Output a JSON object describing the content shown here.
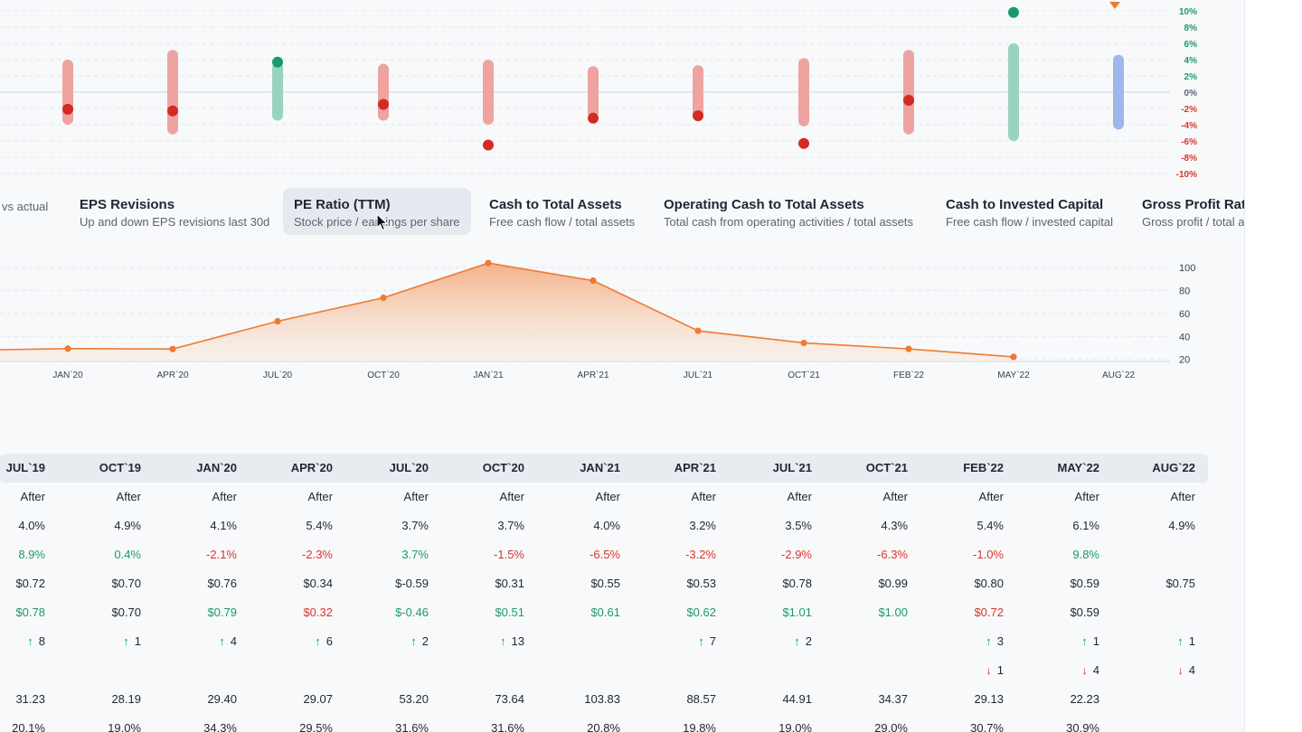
{
  "colors": {
    "positive": "#1e9a66",
    "negative": "#d9362b",
    "accent": "#ee7a32",
    "neutral_bar": "#9db8ec"
  },
  "revisions_chart": {
    "y_ticks": [
      "10%",
      "8%",
      "6%",
      "4%",
      "2%",
      "0%",
      "-2%",
      "-4%",
      "-6%",
      "-8%",
      "-10%"
    ],
    "ylim": [
      -10,
      10
    ],
    "items": [
      {
        "range": [
          -4,
          4
        ],
        "dot": -2.1,
        "tone": "negative"
      },
      {
        "range": [
          -5.2,
          5.2
        ],
        "dot": -2.3,
        "tone": "negative"
      },
      {
        "range": [
          -3.5,
          3.7
        ],
        "dot": 3.7,
        "tone": "positive"
      },
      {
        "range": [
          -3.5,
          3.5
        ],
        "dot": -1.5,
        "tone": "negative"
      },
      {
        "range": [
          -4,
          4
        ],
        "dot": -6.5,
        "tone": "negative"
      },
      {
        "range": [
          -3.2,
          3.2
        ],
        "dot": -3.2,
        "tone": "negative"
      },
      {
        "range": [
          -3.3,
          3.3
        ],
        "dot": -2.9,
        "tone": "negative"
      },
      {
        "range": [
          -4.2,
          4.2
        ],
        "dot": -6.3,
        "tone": "negative"
      },
      {
        "range": [
          -5.2,
          5.2
        ],
        "dot": -1.0,
        "tone": "negative"
      },
      {
        "range": [
          -6,
          6
        ],
        "dot": 9.8,
        "tone": "positive"
      },
      {
        "range": [
          -4.6,
          4.6
        ],
        "dot": null,
        "tone": "neutral"
      }
    ]
  },
  "metrics": [
    {
      "title": "",
      "subtitle": "vs actual"
    },
    {
      "title": "EPS Revisions",
      "subtitle": "Up and down EPS revisions last 30d"
    },
    {
      "title": "PE Ratio (TTM)",
      "subtitle": "Stock price / earnings per share",
      "active": true
    },
    {
      "title": "Cash to Total Assets",
      "subtitle": "Free cash flow / total assets"
    },
    {
      "title": "Operating Cash to Total Assets",
      "subtitle": "Total cash from operating activities / total assets"
    },
    {
      "title": "Cash to Invested Capital",
      "subtitle": "Free cash flow / invested capital"
    },
    {
      "title": "Gross Profit Ratio",
      "subtitle": "Gross profit / total assets"
    }
  ],
  "chart_data": {
    "type": "area",
    "title": "PE Ratio (TTM)",
    "x": [
      "OCT`19",
      "JAN`20",
      "APR`20",
      "JUL`20",
      "OCT`20",
      "JAN`21",
      "APR`21",
      "JUL`21",
      "OCT`21",
      "FEB`22",
      "MAY`22"
    ],
    "x_tick_labels": [
      "JAN`20",
      "APR`20",
      "JUL`20",
      "OCT`20",
      "JAN`21",
      "APR`21",
      "JUL`21",
      "OCT`21",
      "FEB`22",
      "MAY`22",
      "AUG`22"
    ],
    "series": [
      {
        "name": "",
        "values": [
          28.19,
          29.4,
          29.07,
          53.2,
          73.64,
          103.83,
          88.57,
          44.91,
          34.37,
          29.13,
          22.23
        ]
      }
    ],
    "y_ticks": [
      100,
      80,
      60,
      40,
      20
    ],
    "ylim": [
      19,
      111
    ],
    "grid": true
  },
  "table": {
    "columns": [
      "JUL`19",
      "OCT`19",
      "JAN`20",
      "APR`20",
      "JUL`20",
      "OCT`20",
      "JAN`21",
      "APR`21",
      "JUL`21",
      "OCT`21",
      "FEB`22",
      "MAY`22",
      "AUG`22"
    ],
    "rows": [
      {
        "type": "text",
        "cells": [
          "After",
          "After",
          "After",
          "After",
          "After",
          "After",
          "After",
          "After",
          "After",
          "After",
          "After",
          "After",
          "After"
        ]
      },
      {
        "type": "text",
        "cells": [
          "4.0%",
          "4.9%",
          "4.1%",
          "5.4%",
          "3.7%",
          "3.7%",
          "4.0%",
          "3.2%",
          "3.5%",
          "4.3%",
          "5.4%",
          "6.1%",
          "4.9%"
        ]
      },
      {
        "type": "text",
        "cells": [
          "8.9%",
          "0.4%",
          "-2.1%",
          "-2.3%",
          "3.7%",
          "-1.5%",
          "-6.5%",
          "-3.2%",
          "-2.9%",
          "-6.3%",
          "-1.0%",
          "9.8%",
          ""
        ],
        "tones": [
          "pos",
          "pos",
          "neg",
          "neg",
          "pos",
          "neg",
          "neg",
          "neg",
          "neg",
          "neg",
          "neg",
          "pos",
          ""
        ]
      },
      {
        "type": "text",
        "cells": [
          "$0.72",
          "$0.70",
          "$0.76",
          "$0.34",
          "$-0.59",
          "$0.31",
          "$0.55",
          "$0.53",
          "$0.78",
          "$0.99",
          "$0.80",
          "$0.59",
          "$0.75"
        ]
      },
      {
        "type": "text",
        "cells": [
          "$0.78",
          "$0.70",
          "$0.79",
          "$0.32",
          "$-0.46",
          "$0.51",
          "$0.61",
          "$0.62",
          "$1.01",
          "$1.00",
          "$0.72",
          "$0.59",
          ""
        ],
        "tones": [
          "pos",
          "",
          "pos",
          "neg",
          "pos",
          "pos",
          "pos",
          "pos",
          "pos",
          "pos",
          "neg",
          "",
          ""
        ]
      },
      {
        "type": "up",
        "cells": [
          "8",
          "1",
          "4",
          "6",
          "2",
          "13",
          "",
          "7",
          "2",
          "",
          "3",
          "1",
          "1"
        ]
      },
      {
        "type": "down",
        "cells": [
          "",
          "",
          "",
          "",
          "",
          "",
          "",
          "",
          "",
          "",
          "1",
          "4",
          "4"
        ]
      },
      {
        "type": "text",
        "cells": [
          "31.23",
          "28.19",
          "29.40",
          "29.07",
          "53.20",
          "73.64",
          "103.83",
          "88.57",
          "44.91",
          "34.37",
          "29.13",
          "22.23",
          ""
        ]
      },
      {
        "type": "text",
        "cells": [
          "20.1%",
          "19.0%",
          "34.3%",
          "29.5%",
          "31.6%",
          "31.6%",
          "20.8%",
          "19.8%",
          "19.0%",
          "29.0%",
          "30.7%",
          "30.9%",
          ""
        ]
      }
    ],
    "up_arrow": "↑",
    "down_arrow": "↓"
  }
}
